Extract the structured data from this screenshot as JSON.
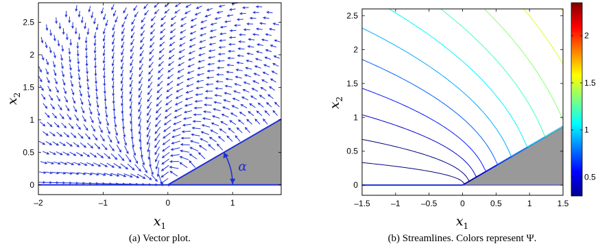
{
  "chart_data": [
    {
      "type": "vector-field",
      "caption": "(a)  Vector plot.",
      "xlabel": "x",
      "xlabel_sub": "1",
      "ylabel": "x",
      "ylabel_sub": "2",
      "xlim": [
        -2,
        1.75
      ],
      "ylim": [
        -0.15,
        2.8
      ],
      "xticks": [
        -2,
        -1,
        0,
        1
      ],
      "yticks": [
        0,
        0.5,
        1,
        1.5,
        2,
        2.5
      ],
      "xtick_labels": [
        "–2",
        "–1",
        "0",
        "1"
      ],
      "ytick_labels": [
        "0",
        "0.5",
        "1",
        "1.5",
        "2",
        "2.5"
      ],
      "angle_label": "α",
      "wedge_angle_deg": 30,
      "vector_color": "#1f2fd6",
      "wedge_color": "#999999",
      "grid": false
    },
    {
      "type": "contour-lines",
      "caption": "(b)  Streamlines. Colors represent Ψ.",
      "xlabel": "x",
      "xlabel_sub": "1",
      "ylabel": "x",
      "ylabel_sub": "2",
      "xlim": [
        -1.5,
        1.5
      ],
      "ylim": [
        -0.15,
        2.6
      ],
      "xticks": [
        -1.5,
        -1,
        -0.5,
        0,
        0.5,
        1,
        1.5
      ],
      "yticks": [
        0,
        0.5,
        1,
        1.5,
        2,
        2.5
      ],
      "xtick_labels": [
        "–1.5",
        "–1",
        "–0.5",
        "0",
        "0.5",
        "1",
        "1.5"
      ],
      "ytick_labels": [
        "0",
        "0.5",
        "1",
        "1.5",
        "2",
        "2.5"
      ],
      "wedge_angle_deg": 30,
      "levels": [
        0.15,
        0.3,
        0.45,
        0.6,
        0.75,
        0.9,
        1.05,
        1.2,
        1.35,
        1.5,
        1.65,
        1.8,
        1.95,
        2.1,
        2.25
      ],
      "colorbar": {
        "colormap": "jet",
        "range": [
          0.3,
          2.35
        ],
        "ticks": [
          0.5,
          1,
          1.5,
          2
        ],
        "tick_labels": [
          "0.5",
          "1",
          "1.5",
          "2"
        ]
      },
      "grid": false
    }
  ]
}
